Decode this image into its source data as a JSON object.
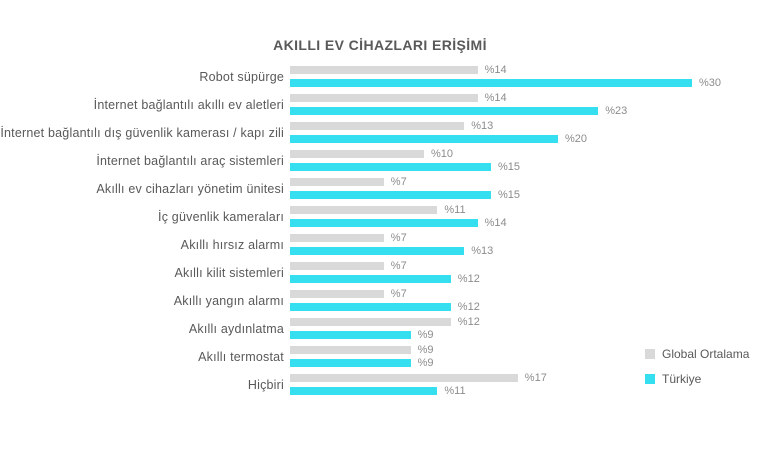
{
  "title": "AKILLI EV CİHAZLARI ERİŞİMİ",
  "chart_data": {
    "type": "bar",
    "orientation": "horizontal",
    "title": "AKILLI EV CİHAZLARI ERİŞİMİ",
    "categories": [
      "Robot süpürge",
      "İnternet bağlantılı akıllı ev aletleri",
      "İnternet bağlantılı dış güvenlik kamerası / kapı zili",
      "İnternet bağlantılı araç sistemleri",
      "Akıllı ev cihazları yönetim ünitesi",
      "İç güvenlik kameraları",
      "Akıllı hırsız alarmı",
      "Akıllı kilit sistemleri",
      "Akıllı yangın alarmı",
      "Akıllı aydınlatma",
      "Akıllı termostat",
      "Hiçbiri"
    ],
    "series": [
      {
        "name": "Global Ortalama",
        "color": "#D9D9D9",
        "values": [
          14,
          14,
          13,
          10,
          7,
          11,
          7,
          7,
          7,
          12,
          9,
          17
        ]
      },
      {
        "name": "Türkiye",
        "color": "#35DFF0",
        "values": [
          30,
          23,
          20,
          15,
          15,
          14,
          13,
          12,
          12,
          9,
          9,
          11
        ]
      }
    ],
    "value_label_prefix": "%",
    "xlim": [
      0,
      32
    ],
    "grid": false,
    "legend_position": "right-bottom"
  }
}
